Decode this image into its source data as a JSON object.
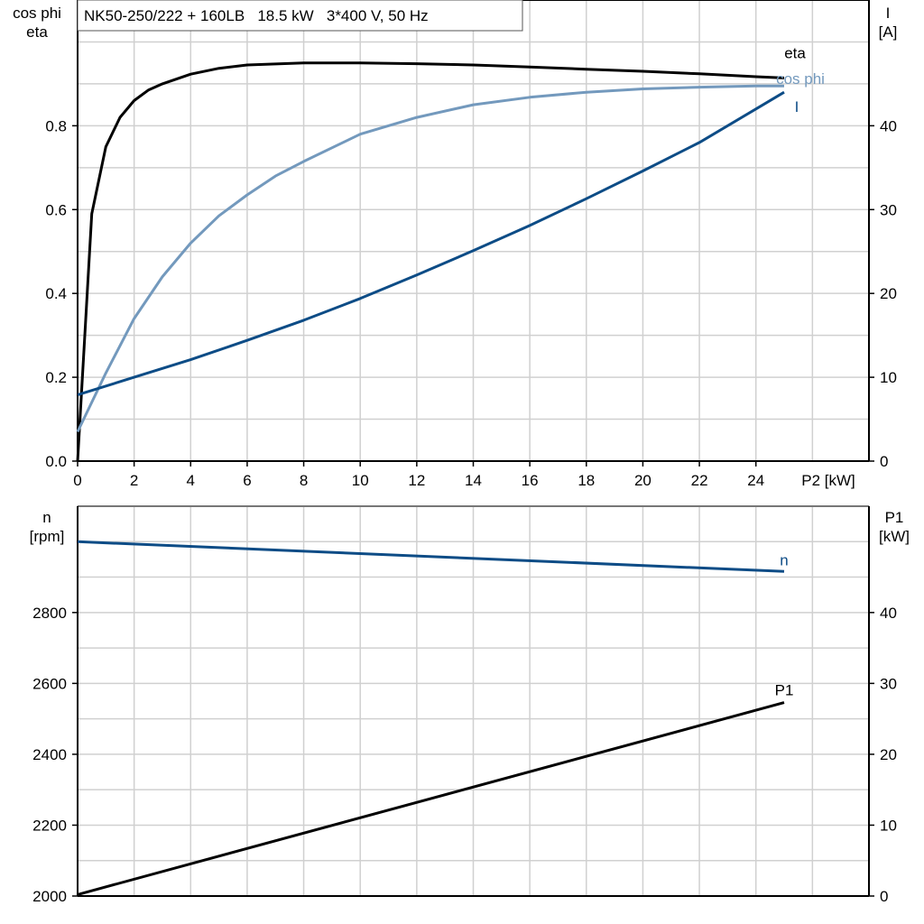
{
  "chart_data": [
    {
      "type": "line",
      "title": "NK50-250/222 + 160LB   18.5 kW   3*400 V, 50 Hz",
      "xlabel": "P2 [kW]",
      "xlim": [
        0,
        28
      ],
      "xticks": [
        0,
        2,
        4,
        6,
        8,
        10,
        12,
        14,
        16,
        18,
        20,
        22,
        24
      ],
      "ylabel_left": [
        "cos phi",
        "eta"
      ],
      "ylim_left": [
        0,
        1.1
      ],
      "yticks_left": [
        "0.0",
        "0.2",
        "0.4",
        "0.6",
        "0.8"
      ],
      "ylabel_right": [
        "I",
        "[A]"
      ],
      "ylim_right": [
        0,
        55
      ],
      "yticks_right": [
        "0",
        "10",
        "20",
        "30",
        "40"
      ],
      "grid": true,
      "series": [
        {
          "name": "eta",
          "axis": "left",
          "color": "#000000",
          "x": [
            0,
            0.5,
            1,
            1.5,
            2,
            2.5,
            3,
            4,
            5,
            6,
            8,
            10,
            12,
            14,
            16,
            18,
            20,
            22,
            24,
            25
          ],
          "y": [
            0.0,
            0.59,
            0.75,
            0.82,
            0.86,
            0.885,
            0.9,
            0.923,
            0.937,
            0.945,
            0.95,
            0.95,
            0.948,
            0.945,
            0.94,
            0.935,
            0.93,
            0.924,
            0.917,
            0.914
          ]
        },
        {
          "name": "cos phi",
          "axis": "left",
          "color": "#7399BD",
          "x": [
            0,
            1,
            2,
            3,
            4,
            5,
            6,
            7,
            8,
            10,
            12,
            14,
            16,
            18,
            20,
            22,
            24,
            25
          ],
          "y": [
            0.07,
            0.21,
            0.34,
            0.44,
            0.52,
            0.585,
            0.635,
            0.68,
            0.715,
            0.78,
            0.82,
            0.85,
            0.868,
            0.88,
            0.888,
            0.892,
            0.895,
            0.895
          ]
        },
        {
          "name": "I",
          "axis": "right",
          "color": "#0D4C86",
          "x": [
            0,
            2,
            4,
            6,
            8,
            10,
            12,
            14,
            16,
            18,
            20,
            22,
            24,
            25
          ],
          "y": [
            7.9,
            10.0,
            12.1,
            14.4,
            16.8,
            19.4,
            22.2,
            25.1,
            28.1,
            31.3,
            34.6,
            38.0,
            42.0,
            44.0
          ]
        }
      ]
    },
    {
      "type": "line",
      "xlim": [
        0,
        28
      ],
      "ylabel_left": [
        "n",
        "[rpm]"
      ],
      "ylim_left": [
        2000,
        3100
      ],
      "yticks_left": [
        "2000",
        "2200",
        "2400",
        "2600",
        "2800"
      ],
      "ylabel_right": [
        "P1",
        "[kW]"
      ],
      "ylim_right": [
        0,
        55
      ],
      "yticks_right": [
        "0",
        "10",
        "20",
        "30",
        "40"
      ],
      "grid": true,
      "series": [
        {
          "name": "n",
          "axis": "left",
          "color": "#0D4C86",
          "x": [
            0,
            25
          ],
          "y": [
            3000,
            2916
          ]
        },
        {
          "name": "P1",
          "axis": "right",
          "color": "#000000",
          "x": [
            0,
            25
          ],
          "y": [
            0.2,
            27.3
          ]
        }
      ]
    }
  ]
}
